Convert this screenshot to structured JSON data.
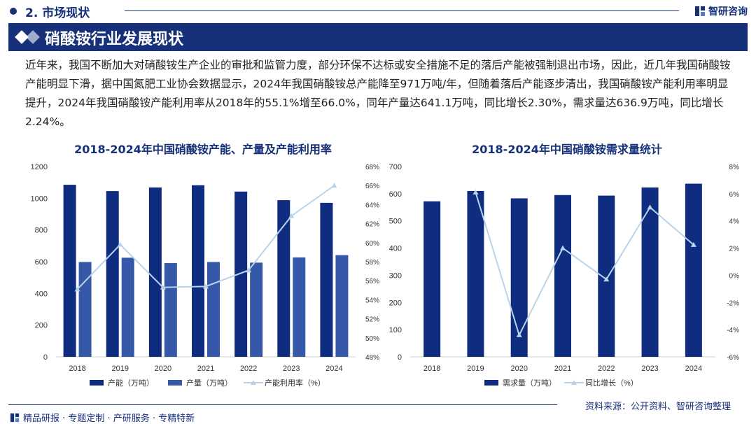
{
  "header": {
    "section_title": "2. 市场现状",
    "brand": "智研咨询",
    "banner_title": "硝酸铵行业发展现状"
  },
  "intro_text": "近年来，我国不断加大对硝酸铵生产企业的审批和监管力度，部分环保不达标或安全措施不足的落后产能被强制退出市场，因此，近几年我国硝酸铵产能明显下滑，据中国氮肥工业协会数据显示，2024年我国硝酸铵总产能降至971万吨/年，但随着落后产能逐步清出，我国硝酸铵产能利用率明显提升，2024年我国硝酸铵产能利用率从2018年的55.1%增至66.0%，同年产量达641.1万吨，同比增长2.30%，需求量达636.9万吨，同比增长2.24%。",
  "footer": {
    "tagline": "精品研报 · 专题定制 · 产研服务 · 专精特新",
    "source": "资料来源：公开资料、智研咨询整理"
  },
  "colors": {
    "navy": "#16307a",
    "bar_dark": "#0f2d80",
    "bar_mid": "#3558a8",
    "line": "#b9d4ea"
  },
  "chart_data": [
    {
      "type": "bar",
      "title": "2018-2024年中国硝酸铵产能、产量及产能利用率",
      "categories": [
        "2018",
        "2019",
        "2020",
        "2021",
        "2022",
        "2023",
        "2024"
      ],
      "series": [
        {
          "name": "产能（万吨）",
          "kind": "bar",
          "axis": "left",
          "values": [
            1085,
            1045,
            1068,
            1082,
            1042,
            988,
            971
          ]
        },
        {
          "name": "产量（万吨）",
          "kind": "bar",
          "axis": "left",
          "values": [
            598,
            625,
            591,
            598,
            594,
            627,
            641.1
          ]
        },
        {
          "name": "产能利用率（%）",
          "kind": "line",
          "axis": "right",
          "values": [
            55.1,
            59.8,
            55.3,
            55.4,
            57.1,
            62.8,
            66.0
          ]
        }
      ],
      "y_left": {
        "min": 0,
        "max": 1200,
        "ticks": [
          "0",
          "200",
          "400",
          "600",
          "800",
          "1000",
          "1200"
        ]
      },
      "y_right": {
        "min": 48,
        "max": 68,
        "ticks": [
          "48%",
          "50%",
          "52%",
          "54%",
          "56%",
          "58%",
          "60%",
          "62%",
          "64%",
          "66%",
          "68%"
        ]
      }
    },
    {
      "type": "bar",
      "title": "2018-2024年中国硝酸铵需求量统计",
      "categories": [
        "2018",
        "2019",
        "2020",
        "2021",
        "2022",
        "2023",
        "2024"
      ],
      "series": [
        {
          "name": "需求量（万吨）",
          "kind": "bar",
          "axis": "left",
          "values": [
            572,
            610,
            583,
            595,
            593,
            623,
            636.9
          ]
        },
        {
          "name": "同比增长（%）",
          "kind": "line",
          "axis": "right",
          "values": [
            null,
            6.1,
            -4.4,
            2.0,
            -0.3,
            5.0,
            2.24
          ]
        }
      ],
      "y_left": {
        "min": 0,
        "max": 700,
        "ticks": [
          "0",
          "100",
          "200",
          "300",
          "400",
          "500",
          "600",
          "700"
        ]
      },
      "y_right": {
        "min": -6,
        "max": 8,
        "ticks": [
          "-6%",
          "-4%",
          "-2%",
          "0%",
          "2%",
          "4%",
          "6%",
          "8%"
        ]
      }
    }
  ]
}
